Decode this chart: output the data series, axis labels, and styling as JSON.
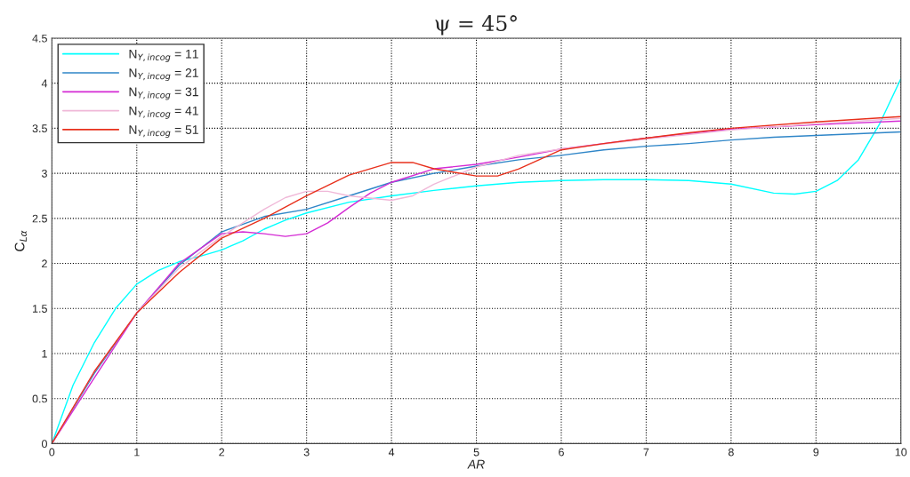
{
  "chart_data": {
    "type": "line",
    "title": "ψ = 45°",
    "xlabel": "AR",
    "ylabel": "C$_{Lα}$",
    "xlim": [
      0,
      10
    ],
    "ylim": [
      0,
      4.5
    ],
    "xticks": [
      0,
      1,
      2,
      3,
      4,
      5,
      6,
      7,
      8,
      9,
      10
    ],
    "yticks": [
      0,
      0.5,
      1,
      1.5,
      2,
      2.5,
      3,
      3.5,
      4,
      4.5
    ],
    "grid": true,
    "legend": "top left",
    "line_style": "solid",
    "series": [
      {
        "name": "N$_{Y,incog}$ = 11",
        "color": "#00ffff",
        "x": [
          0,
          0.25,
          0.5,
          0.75,
          1,
          1.25,
          1.5,
          1.75,
          2,
          2.25,
          2.5,
          2.75,
          3,
          3.5,
          4,
          4.5,
          5,
          5.5,
          6,
          6.5,
          7,
          7.5,
          8,
          8.5,
          8.75,
          9,
          9.25,
          9.5,
          9.75,
          10
        ],
        "values": [
          0,
          0.65,
          1.12,
          1.5,
          1.77,
          1.92,
          2.02,
          2.08,
          2.15,
          2.25,
          2.38,
          2.48,
          2.56,
          2.68,
          2.75,
          2.81,
          2.86,
          2.9,
          2.92,
          2.93,
          2.93,
          2.92,
          2.88,
          2.78,
          2.77,
          2.8,
          2.92,
          3.15,
          3.55,
          4.05
        ]
      },
      {
        "name": "N$_{Y,incog}$ = 21",
        "color": "#2f86c8",
        "x": [
          0,
          0.5,
          1,
          1.5,
          2,
          2.5,
          3,
          3.5,
          4,
          4.5,
          5,
          5.5,
          6,
          6.5,
          7,
          7.5,
          8,
          8.5,
          9,
          9.5,
          10
        ],
        "values": [
          0,
          0.78,
          1.45,
          1.98,
          2.35,
          2.52,
          2.6,
          2.75,
          2.9,
          3.0,
          3.08,
          3.15,
          3.2,
          3.26,
          3.3,
          3.33,
          3.37,
          3.4,
          3.42,
          3.44,
          3.46
        ]
      },
      {
        "name": "N$_{Y,incog}$ = 31",
        "color": "#d42bd4",
        "x": [
          0,
          0.5,
          1,
          1.5,
          2,
          2.25,
          2.5,
          2.75,
          3,
          3.25,
          3.5,
          3.75,
          4,
          4.5,
          5,
          5.5,
          6,
          6.5,
          7,
          7.5,
          8,
          9,
          10
        ],
        "values": [
          0,
          0.73,
          1.45,
          2.0,
          2.33,
          2.35,
          2.33,
          2.3,
          2.33,
          2.45,
          2.62,
          2.78,
          2.9,
          3.05,
          3.1,
          3.18,
          3.27,
          3.33,
          3.39,
          3.44,
          3.49,
          3.54,
          3.58
        ]
      },
      {
        "name": "N$_{Y,incog}$ = 41",
        "color": "#f0b8d8",
        "x": [
          0,
          0.5,
          1,
          1.5,
          2,
          2.5,
          2.75,
          3,
          3.25,
          3.5,
          4,
          4.25,
          4.5,
          5,
          5.5,
          6,
          7,
          8,
          9,
          10
        ],
        "values": [
          0,
          0.8,
          1.45,
          1.95,
          2.3,
          2.6,
          2.73,
          2.8,
          2.8,
          2.75,
          2.7,
          2.75,
          2.88,
          3.07,
          3.2,
          3.27,
          3.38,
          3.48,
          3.55,
          3.61
        ]
      },
      {
        "name": "N$_{Y,incog}$ = 51",
        "color": "#e8301c",
        "x": [
          0,
          0.5,
          1,
          1.5,
          2,
          2.5,
          3,
          3.5,
          4,
          4.25,
          4.5,
          5,
          5.25,
          5.5,
          6,
          6.5,
          7,
          7.5,
          8,
          9,
          10
        ],
        "values": [
          0,
          0.8,
          1.45,
          1.9,
          2.28,
          2.5,
          2.75,
          2.98,
          3.12,
          3.12,
          3.05,
          2.97,
          2.97,
          3.05,
          3.26,
          3.33,
          3.39,
          3.45,
          3.5,
          3.57,
          3.63
        ]
      }
    ]
  }
}
